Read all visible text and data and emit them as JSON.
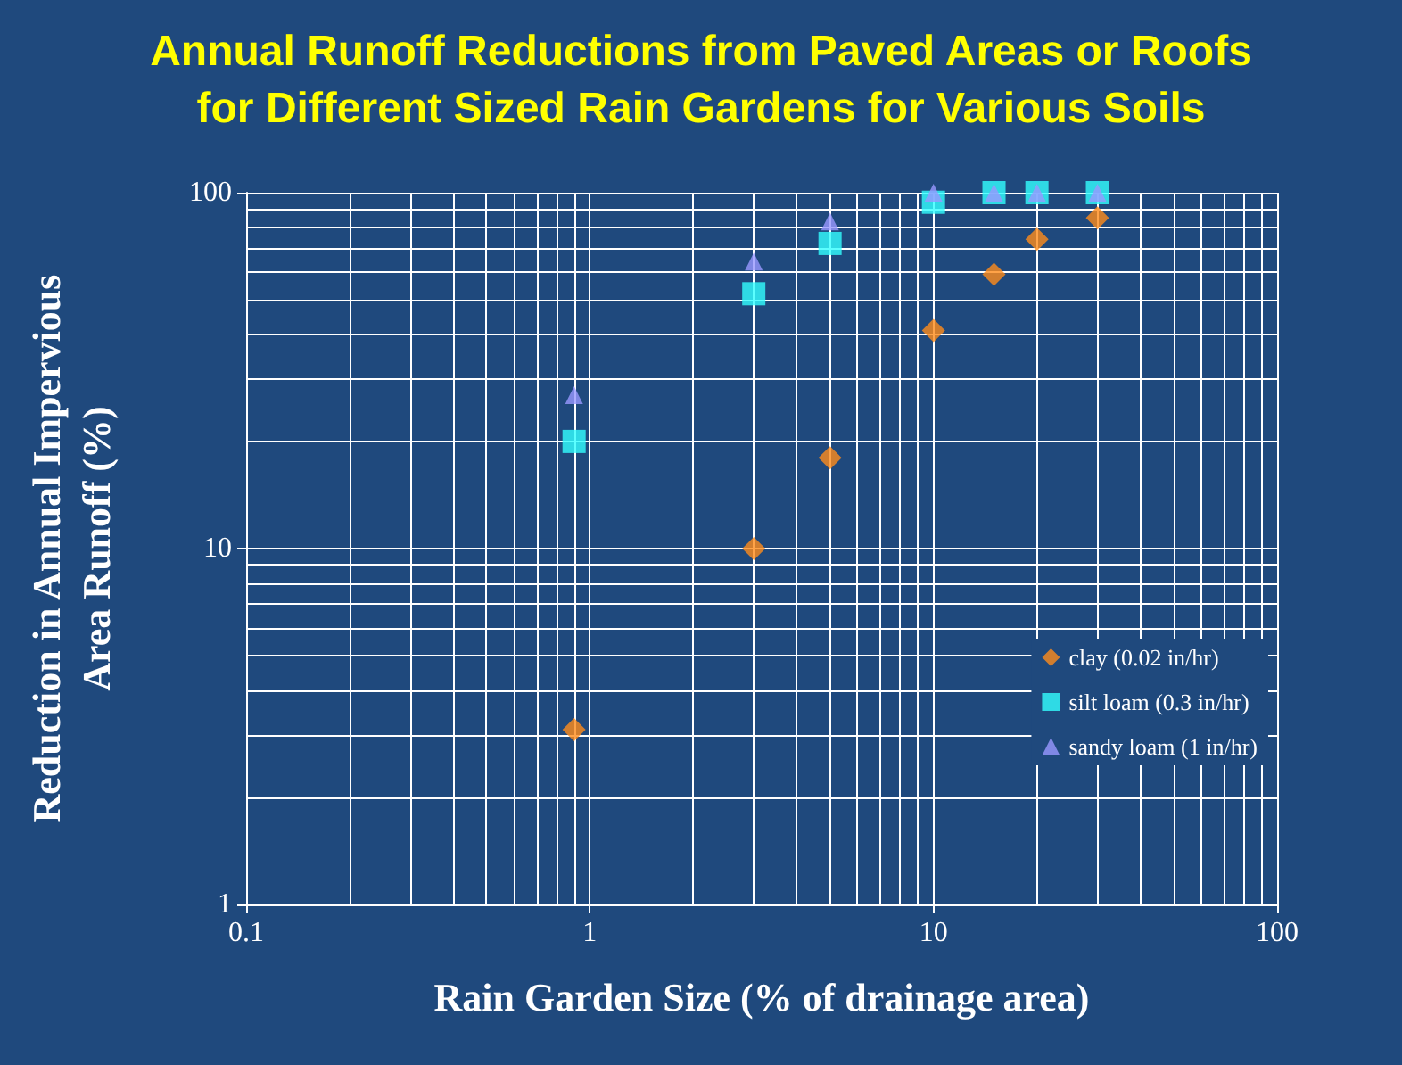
{
  "chart_data": {
    "type": "scatter",
    "title": "Annual Runoff Reductions from Paved Areas or Roofs\nfor Different Sized Rain Gardens for Various Soils",
    "xlabel": "Rain Garden Size (% of drainage area)",
    "ylabel": "Reduction in Annual Impervious\nArea Runoff (%)",
    "log": "xy",
    "grid": true,
    "legend": "right",
    "xlim": [
      0.1,
      100
    ],
    "xticks": [
      0.1,
      1,
      10,
      100
    ],
    "ylim": [
      1,
      100
    ],
    "yticks": [
      1,
      10,
      100
    ],
    "series": [
      {
        "name": "clay (0.02 in/hr)",
        "color": "#ff8c1a",
        "marker": "diamond",
        "x": [
          0.9,
          3,
          5,
          10,
          15,
          20,
          30
        ],
        "values": [
          3.1,
          10,
          18,
          41,
          59,
          74,
          85
        ]
      },
      {
        "name": "silt loam (0.3 in/hr)",
        "color": "#33ffff",
        "marker": "square",
        "x": [
          0.9,
          3,
          5,
          10,
          15,
          20,
          30
        ],
        "values": [
          20,
          52,
          72,
          94,
          100,
          100,
          100
        ]
      },
      {
        "name": "sandy loam (1 in/hr)",
        "color": "#9999ff",
        "marker": "triangle",
        "x": [
          0.9,
          3,
          5,
          10,
          15,
          20,
          30
        ],
        "values": [
          27,
          64,
          83,
          100,
          100,
          100,
          100
        ]
      }
    ]
  }
}
